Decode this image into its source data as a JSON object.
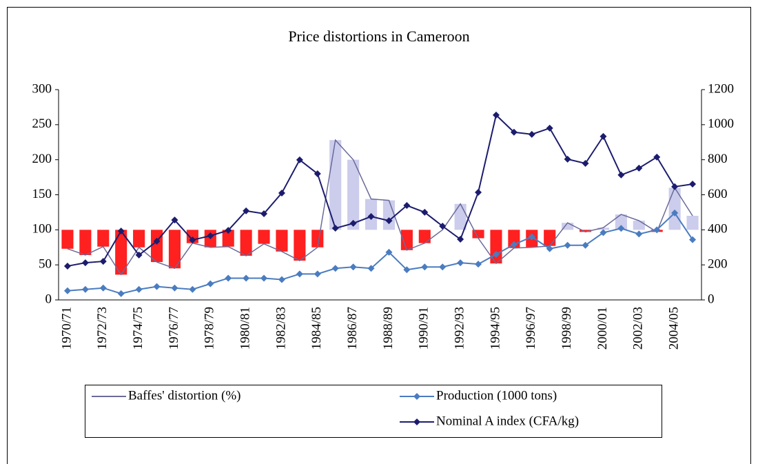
{
  "chart_data": {
    "type": "combo",
    "title": "Price distortions in Cameroon",
    "categories": [
      "1970/71",
      null,
      "1972/73",
      null,
      "1974/75",
      null,
      "1976/77",
      null,
      "1978/79",
      null,
      "1980/81",
      null,
      "1982/83",
      null,
      "1984/85",
      null,
      "1986/87",
      null,
      "1988/89",
      null,
      "1990/91",
      null,
      "1992/93",
      null,
      "1994/95",
      null,
      "1996/97",
      null,
      "1998/99",
      null,
      "2000/01",
      null,
      "2002/03",
      null,
      "2004/05",
      null
    ],
    "ylim": [
      0,
      300
    ],
    "yticks": [
      0,
      50,
      100,
      150,
      200,
      250,
      300
    ],
    "y2lim": [
      0,
      1200
    ],
    "y2ticks": [
      0,
      200,
      400,
      600,
      800,
      1000,
      1200
    ],
    "legend": "bottom",
    "series": [
      {
        "name": "Baffes' distortion (%)",
        "kind": "bar+line",
        "color": "#6a6a9a",
        "bar_baseline": 100,
        "bar_colors": {
          "below": "#ff2020",
          "above": "#ccccec"
        },
        "values": [
          73,
          64,
          76,
          36,
          75,
          54,
          45,
          81,
          75,
          76,
          63,
          80,
          69,
          56,
          75,
          228,
          200,
          144,
          142,
          71,
          81,
          100,
          137,
          88,
          52,
          74,
          75,
          77,
          110,
          97,
          103,
          122,
          113,
          97,
          160,
          120
        ]
      },
      {
        "name": "Production (1000 tons)",
        "kind": "line",
        "marker": "diamond",
        "color": "#4a7cc0",
        "values": [
          13,
          15,
          17,
          9,
          15,
          19,
          17,
          15,
          23,
          31,
          31,
          31,
          29,
          37,
          37,
          45,
          47,
          45,
          68,
          43,
          47,
          47,
          53,
          51,
          65,
          79,
          90,
          73,
          78,
          78,
          96,
          102,
          94,
          100,
          124,
          86
        ]
      },
      {
        "name": "Nominal A index (CFA/kg)",
        "kind": "line",
        "marker": "diamond",
        "color": "#1c1c6e",
        "axis": "y2",
        "values": [
          193,
          212,
          220,
          393,
          256,
          335,
          456,
          342,
          366,
          397,
          508,
          492,
          610,
          799,
          720,
          409,
          437,
          476,
          452,
          539,
          500,
          421,
          346,
          614,
          1055,
          957,
          945,
          980,
          803,
          779,
          933,
          713,
          752,
          815,
          646,
          661
        ]
      }
    ]
  }
}
